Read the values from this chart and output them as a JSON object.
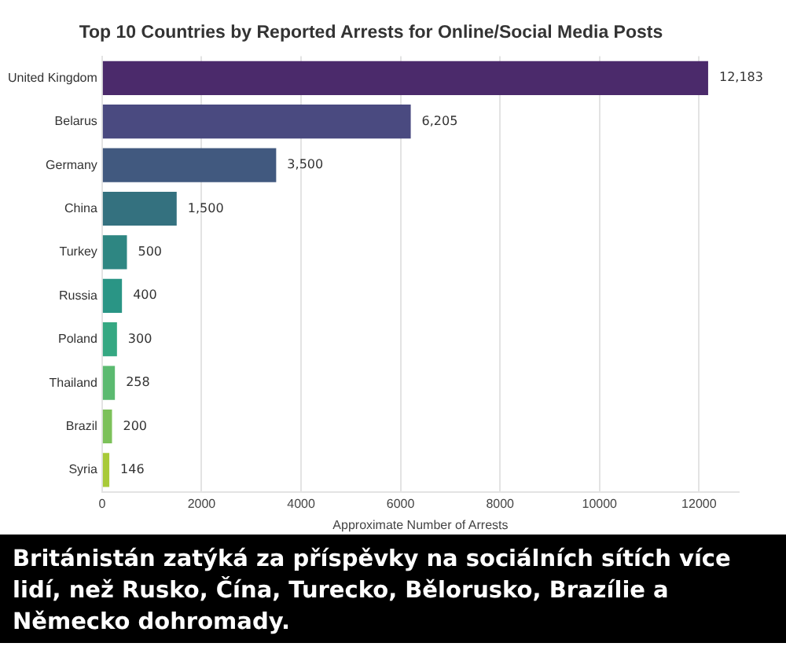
{
  "chart_data": {
    "type": "bar",
    "orientation": "horizontal",
    "title": "Top 10 Countries by Reported Arrests for Online/Social Media Posts",
    "xlabel": "Approximate Number of Arrests",
    "categories": [
      "United Kingdom",
      "Belarus",
      "Germany",
      "China",
      "Turkey",
      "Russia",
      "Poland",
      "Thailand",
      "Brazil",
      "Syria"
    ],
    "values": [
      12183,
      6205,
      3500,
      1500,
      500,
      400,
      300,
      258,
      200,
      146
    ],
    "value_labels": [
      "12,183",
      "6,205",
      "3,500",
      "1,500",
      "500",
      "400",
      "300",
      "258",
      "200",
      "146"
    ],
    "colors": [
      "#4b2a6b",
      "#4a4a80",
      "#41597f",
      "#34717f",
      "#2e8682",
      "#2a9585",
      "#35a882",
      "#5bba70",
      "#7cc15a",
      "#a8ca38"
    ],
    "xlim": [
      0,
      12800
    ],
    "xticks": [
      0,
      2000,
      4000,
      6000,
      8000,
      10000,
      12000
    ],
    "grid": "x",
    "annotations": [
      "Británistán zatýká za příspěvky na sociálních sítích více lidí, než Rusko, Čína, Turecko, Bělorusko, Brazílie a Německo dohromady."
    ]
  }
}
